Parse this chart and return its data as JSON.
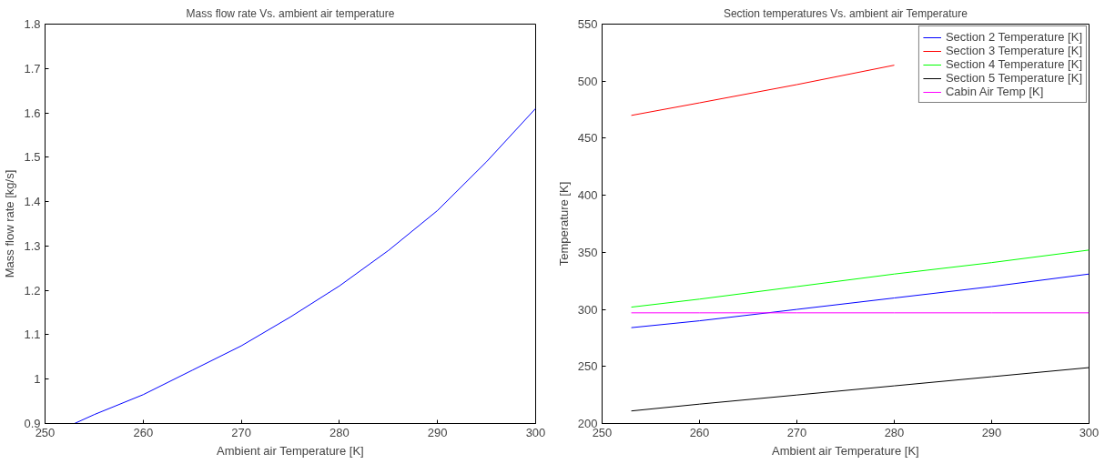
{
  "chart_data": [
    {
      "type": "line",
      "title": "Mass flow rate Vs. ambient air temperature",
      "xlabel": "Ambient air Temperature [K]",
      "ylabel": "Mass flow rate [kg/s]",
      "xlim": [
        250,
        300
      ],
      "ylim": [
        0.9,
        1.8
      ],
      "xticks": [
        250,
        260,
        270,
        280,
        290,
        300
      ],
      "yticks": [
        0.9,
        1,
        1.1,
        1.2,
        1.3,
        1.4,
        1.5,
        1.6,
        1.7,
        1.8
      ],
      "grid": false,
      "legend": false,
      "series": [
        {
          "color": "#0000ff",
          "x": [
            253,
            255,
            260,
            265,
            270,
            275,
            280,
            285,
            290,
            295,
            300
          ],
          "values": [
            0.9,
            0.92,
            0.965,
            1.02,
            1.075,
            1.14,
            1.21,
            1.29,
            1.38,
            1.49,
            1.61
          ]
        }
      ]
    },
    {
      "type": "line",
      "title": "Section temperatures Vs. ambient air Temperature",
      "xlabel": "Ambient air Temperature [K]",
      "ylabel": "Temperature [K]",
      "xlim": [
        250,
        300
      ],
      "ylim": [
        200,
        550
      ],
      "xticks": [
        250,
        260,
        270,
        280,
        290,
        300
      ],
      "yticks": [
        200,
        250,
        300,
        350,
        400,
        450,
        500,
        550
      ],
      "grid": false,
      "legend": "top right",
      "series": [
        {
          "name": "Section 2 Temperature [K]",
          "color": "#0000ff",
          "x": [
            253,
            260,
            270,
            280,
            290,
            300
          ],
          "values": [
            284,
            290,
            300,
            310,
            320,
            331
          ]
        },
        {
          "name": "Section 3 Temperature [K]",
          "color": "#ff0000",
          "x": [
            253,
            260,
            270,
            280
          ],
          "values": [
            470,
            481,
            497,
            514
          ]
        },
        {
          "name": "Section 4 Temperature [K]",
          "color": "#00ff00",
          "x": [
            253,
            260,
            270,
            280,
            290,
            300
          ],
          "values": [
            302,
            309,
            320,
            331,
            341,
            352
          ]
        },
        {
          "name": "Section 5 Temperature [K]",
          "color": "#000000",
          "x": [
            253,
            260,
            270,
            280,
            290,
            300
          ],
          "values": [
            211,
            217,
            225,
            233,
            241,
            249
          ]
        },
        {
          "name": "Cabin Air Temp [K]",
          "color": "#ff00ff",
          "x": [
            253,
            260,
            270,
            280,
            290,
            300
          ],
          "values": [
            297,
            297,
            297,
            297,
            297,
            297
          ]
        }
      ]
    }
  ]
}
